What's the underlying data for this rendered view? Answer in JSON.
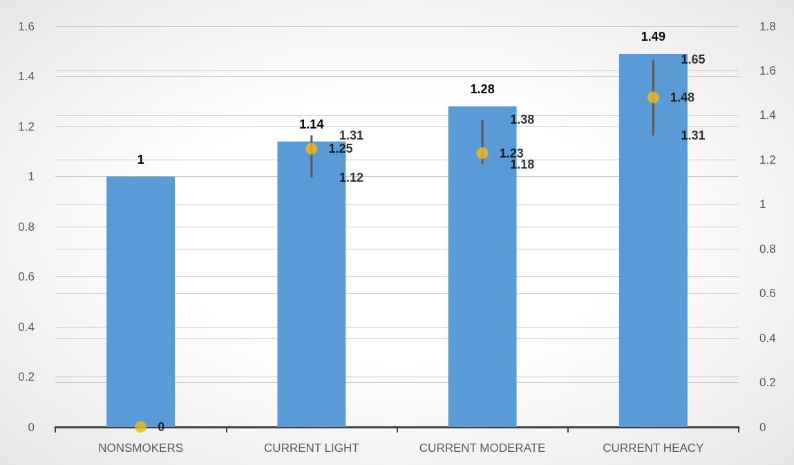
{
  "chart_data": {
    "type": "bar",
    "categories": [
      "NONSMOKERS",
      "CURRENT LIGHT",
      "CURRENT MODERATE",
      "CURRENT HEACY"
    ],
    "series": [
      {
        "type": "bar",
        "color": "#5b9bd5",
        "values": [
          1,
          1.14,
          1.28,
          1.49
        ],
        "data_labels": true
      },
      {
        "type": "scatter",
        "color": "#f4b919",
        "axis": "y2",
        "values": [
          0,
          1.25,
          1.23,
          1.48
        ],
        "errors": [
          null,
          [
            1.12,
            1.31
          ],
          [
            1.18,
            1.38
          ],
          [
            1.31,
            1.65
          ]
        ],
        "value_labels": [
          "0",
          "1.25",
          "1.23",
          "1.48"
        ]
      }
    ],
    "annotations": [
      "1.31",
      "1.12",
      "1.38",
      "1.18",
      "1.65",
      "1.31"
    ],
    "ylim": [
      0,
      1.6
    ],
    "yticks": [
      0,
      0.2,
      0.4,
      0.6,
      0.8,
      1,
      1.2,
      1.4,
      1.6
    ],
    "y2lim": [
      0,
      1.8
    ],
    "y2ticks": [
      0,
      0.2,
      0.4,
      0.6,
      0.8,
      1,
      1.2,
      1.4,
      1.6,
      1.8
    ],
    "grid": true,
    "marker": "circle"
  }
}
